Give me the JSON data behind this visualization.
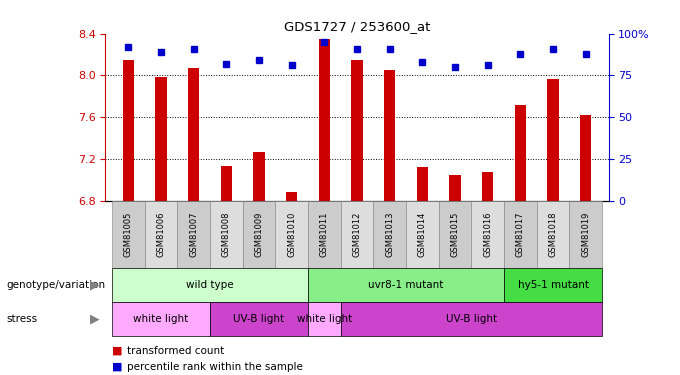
{
  "title": "GDS1727 / 253600_at",
  "samples": [
    "GSM81005",
    "GSM81006",
    "GSM81007",
    "GSM81008",
    "GSM81009",
    "GSM81010",
    "GSM81011",
    "GSM81012",
    "GSM81013",
    "GSM81014",
    "GSM81015",
    "GSM81016",
    "GSM81017",
    "GSM81018",
    "GSM81019"
  ],
  "bar_values": [
    8.15,
    7.99,
    8.07,
    7.13,
    7.27,
    6.88,
    8.35,
    8.15,
    8.05,
    7.12,
    7.05,
    7.07,
    7.72,
    7.97,
    7.62
  ],
  "dot_values": [
    92,
    89,
    91,
    82,
    84,
    81,
    95,
    91,
    91,
    83,
    80,
    81,
    88,
    91,
    88
  ],
  "ylim_left": [
    6.8,
    8.4
  ],
  "ylim_right": [
    0,
    100
  ],
  "yticks_left": [
    6.8,
    7.2,
    7.6,
    8.0,
    8.4
  ],
  "yticks_right": [
    0,
    25,
    50,
    75,
    100
  ],
  "bar_color": "#cc0000",
  "dot_color": "#0000cc",
  "bar_bottom": 6.8,
  "genotype_groups": [
    {
      "label": "wild type",
      "start": 0,
      "end": 6,
      "color": "#ccffcc"
    },
    {
      "label": "uvr8-1 mutant",
      "start": 6,
      "end": 12,
      "color": "#88ee88"
    },
    {
      "label": "hy5-1 mutant",
      "start": 12,
      "end": 15,
      "color": "#44dd44"
    }
  ],
  "stress_groups": [
    {
      "label": "white light",
      "start": 0,
      "end": 3,
      "color": "#ffaaff"
    },
    {
      "label": "UV-B light",
      "start": 3,
      "end": 6,
      "color": "#cc44cc"
    },
    {
      "label": "white light",
      "start": 6,
      "end": 7,
      "color": "#ffaaff"
    },
    {
      "label": "UV-B light",
      "start": 7,
      "end": 15,
      "color": "#cc44cc"
    }
  ],
  "legend_items": [
    {
      "label": "transformed count",
      "color": "#cc0000"
    },
    {
      "label": "percentile rank within the sample",
      "color": "#0000cc"
    }
  ],
  "bg_color": "#ffffff",
  "tick_color_left": "#cc0000",
  "tick_color_right": "#0000cc",
  "label_row1": "genotype/variation",
  "label_row2": "stress",
  "xtick_bg_odd": "#dddddd",
  "xtick_bg_even": "#cccccc"
}
